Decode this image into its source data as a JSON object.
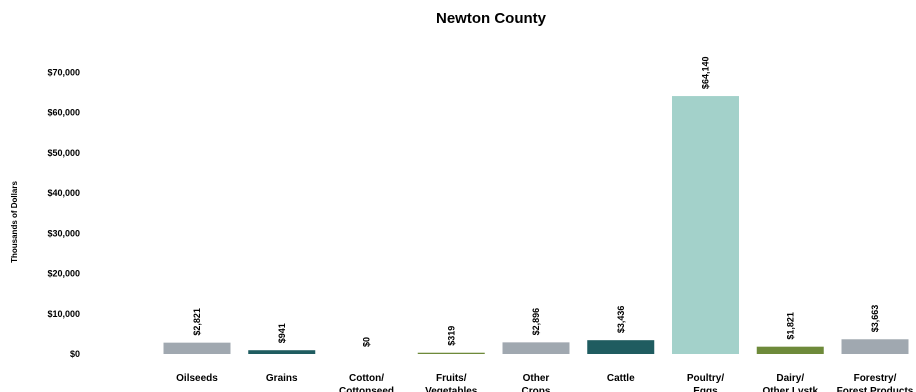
{
  "chart_data": {
    "type": "bar",
    "title": "Newton County",
    "ylabel": "Thousands of Dollars",
    "xlabel": "",
    "ylim": [
      0,
      70000
    ],
    "yticks": [
      0,
      10000,
      20000,
      30000,
      40000,
      50000,
      60000,
      70000
    ],
    "ytick_labels": [
      "$0",
      "$10,000",
      "$20,000",
      "$30,000",
      "$40,000",
      "$50,000",
      "$60,000",
      "$70,000"
    ],
    "grid": false,
    "categories": [
      [
        "Oilseeds"
      ],
      [
        "Grains"
      ],
      [
        "Cotton/",
        "Cottonseed"
      ],
      [
        "Fruits/",
        "Vegetables"
      ],
      [
        "Other",
        "Crops"
      ],
      [
        "Cattle"
      ],
      [
        "Poultry/",
        "Eggs"
      ],
      [
        "Dairy/",
        "Other Lvstk"
      ],
      [
        "Forestry/",
        "Forest Products"
      ]
    ],
    "values": [
      2821,
      941,
      0,
      319,
      2896,
      3436,
      64140,
      1821,
      3663
    ],
    "value_labels": [
      "$2,821",
      "$941",
      "$0",
      "$319",
      "$2,896",
      "$3,436",
      "$64,140",
      "$1,821",
      "$3,663"
    ],
    "colors": [
      "#a0a8b0",
      "#1f5c60",
      "#1f5c60",
      "#6e8a3a",
      "#a0a8b0",
      "#1f5c60",
      "#a3d1ca",
      "#6e8a3a",
      "#a0a8b0"
    ]
  }
}
